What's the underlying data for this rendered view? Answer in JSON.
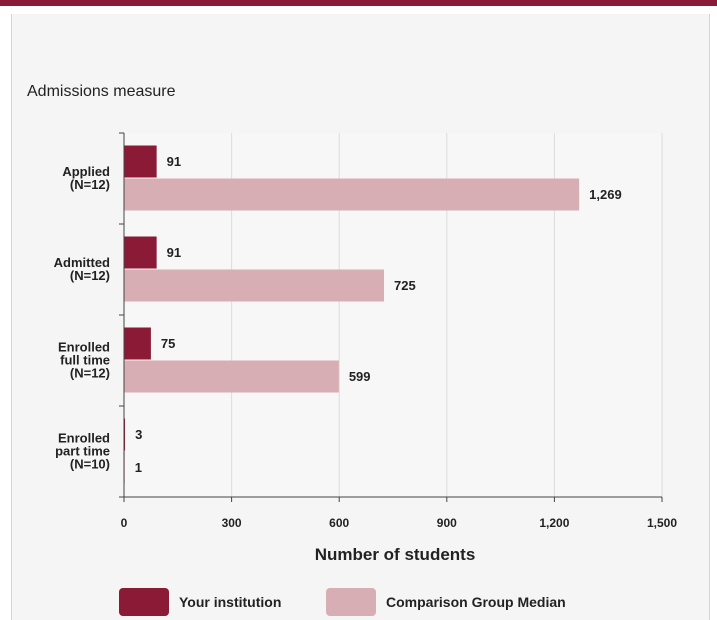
{
  "chart_data": {
    "type": "bar",
    "orientation": "horizontal",
    "title": "Admissions measure",
    "xlabel": "Number of students",
    "xlim": [
      0,
      1500
    ],
    "xticks": [
      0,
      300,
      600,
      900,
      1200,
      1500
    ],
    "xtick_labels": [
      "0",
      "300",
      "600",
      "900",
      "1,200",
      "1,500"
    ],
    "grid": true,
    "legend_position": "bottom",
    "categories": [
      [
        "Applied",
        "(N=12)"
      ],
      [
        "Admitted",
        "(N=12)"
      ],
      [
        "Enrolled",
        "full time",
        "(N=12)"
      ],
      [
        "Enrolled",
        "part time",
        "(N=10)"
      ]
    ],
    "series": [
      {
        "name": "Your institution",
        "color": "#8b1a36",
        "values": [
          91,
          91,
          75,
          3
        ],
        "labels": [
          "91",
          "91",
          "75",
          "3"
        ]
      },
      {
        "name": "Comparison Group Median",
        "color": "#d8aeb5",
        "values": [
          1269,
          725,
          599,
          1
        ],
        "labels": [
          "1,269",
          "725",
          "599",
          "1"
        ]
      }
    ]
  }
}
